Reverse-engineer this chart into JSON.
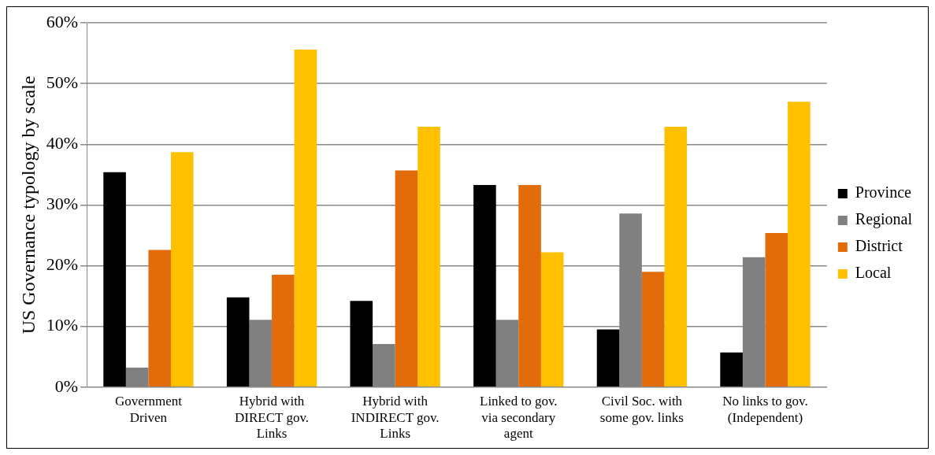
{
  "chart_data": {
    "type": "bar",
    "ylabel": "US Governance typology by scale",
    "categories": [
      "Government Driven",
      "Hybrid with DIRECT gov. Links",
      "Hybrid with INDIRECT gov. Links",
      "Linked to gov. via secondary agent",
      "Civil Soc. with some gov. links",
      "No links to gov. (Independent)"
    ],
    "series": [
      {
        "name": "Province",
        "color": "#000000",
        "values": [
          35.4,
          14.8,
          14.2,
          33.3,
          9.5,
          5.7
        ]
      },
      {
        "name": "Regional",
        "color": "#808080",
        "values": [
          3.2,
          11.1,
          7.1,
          11.1,
          28.6,
          21.4
        ]
      },
      {
        "name": "District",
        "color": "#e36c0a",
        "values": [
          22.6,
          18.5,
          35.7,
          33.3,
          19.0,
          25.4
        ]
      },
      {
        "name": "Local",
        "color": "#ffc000",
        "values": [
          38.7,
          55.6,
          42.9,
          22.2,
          42.9,
          47.0
        ]
      }
    ],
    "ylim": [
      0,
      60
    ],
    "yticks": [
      {
        "value": 0,
        "label": "0%"
      },
      {
        "value": 10,
        "label": "10%"
      },
      {
        "value": 20,
        "label": "20%"
      },
      {
        "value": 30,
        "label": "30%"
      },
      {
        "value": 40,
        "label": "40%"
      },
      {
        "value": 50,
        "label": "50%"
      },
      {
        "value": 60,
        "label": "60%"
      }
    ],
    "grid": "y",
    "legend": "right"
  }
}
